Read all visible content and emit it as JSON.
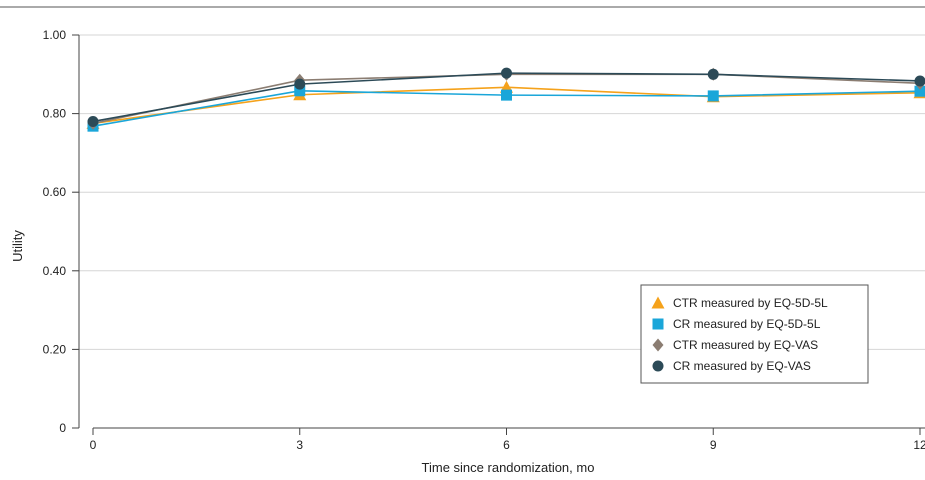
{
  "chart_data": {
    "type": "line",
    "xlabel": "Time since randomization, mo",
    "ylabel": "Utility",
    "x": [
      0,
      3,
      6,
      9,
      12
    ],
    "x_tick_labels": [
      "0",
      "3",
      "6",
      "9",
      "12"
    ],
    "xlim": [
      0,
      12
    ],
    "y_ticks": [
      0,
      0.2,
      0.4,
      0.6,
      0.8,
      1.0
    ],
    "y_tick_labels": [
      "0",
      "0.20",
      "0.40",
      "0.60",
      "0.80",
      "1.00"
    ],
    "ylim": [
      0,
      1.0
    ],
    "grid": "horizontal",
    "legend_position": "bottom-right",
    "series": [
      {
        "name": "CTR measured by EQ-5D-5L",
        "color": "#f5a21b",
        "marker": "triangle",
        "values": [
          0.775,
          0.848,
          0.867,
          0.843,
          0.853
        ]
      },
      {
        "name": "CR measured by EQ-5D-5L",
        "color": "#1aa6d9",
        "marker": "square",
        "values": [
          0.768,
          0.858,
          0.847,
          0.845,
          0.857
        ]
      },
      {
        "name": "CTR measured by EQ-VAS",
        "color": "#8b7d72",
        "marker": "diamond",
        "values": [
          0.775,
          0.885,
          0.9,
          0.9,
          0.877
        ]
      },
      {
        "name": "CR measured by EQ-VAS",
        "color": "#2c4a57",
        "marker": "circle",
        "values": [
          0.78,
          0.875,
          0.903,
          0.9,
          0.883
        ]
      }
    ]
  }
}
